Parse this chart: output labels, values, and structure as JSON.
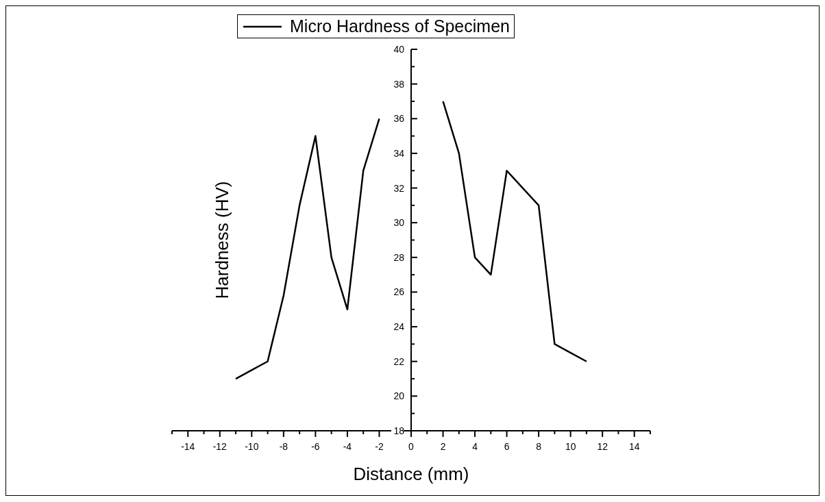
{
  "chart_data": {
    "type": "line",
    "xlabel": "Distance (mm)",
    "ylabel": "Hardness (HV)",
    "x": [
      -11,
      -10,
      -9,
      -8,
      -7,
      -6,
      -5,
      -4,
      -3,
      -2,
      0,
      2,
      3,
      4,
      5,
      6,
      7,
      8,
      9,
      10,
      11
    ],
    "series": [
      {
        "name": "Micro Hardness of Specimen",
        "color": "#000000",
        "values": [
          21,
          21.5,
          22,
          25.8,
          31,
          35,
          28,
          25,
          33,
          36,
          null,
          37,
          34,
          28,
          27,
          33,
          32,
          31,
          23,
          22.5,
          22
        ]
      }
    ],
    "xlim": [
      -15,
      15
    ],
    "xticks": [
      {
        "value": -15,
        "label": null
      },
      -14,
      {
        "value": -13,
        "label": null
      },
      -12,
      {
        "value": -11,
        "label": null
      },
      -10,
      {
        "value": -9,
        "label": null
      },
      -8,
      {
        "value": -7,
        "label": null
      },
      -6,
      {
        "value": -5,
        "label": null
      },
      -4,
      {
        "value": -3,
        "label": null
      },
      -2,
      {
        "value": -1,
        "label": null
      },
      0,
      {
        "value": 1,
        "label": null
      },
      2,
      {
        "value": 3,
        "label": null
      },
      4,
      {
        "value": 5,
        "label": null
      },
      6,
      {
        "value": 7,
        "label": null
      },
      8,
      {
        "value": 9,
        "label": null
      },
      10,
      {
        "value": 11,
        "label": null
      },
      12,
      {
        "value": 13,
        "label": null
      },
      14,
      {
        "value": 15,
        "label": null
      }
    ],
    "ylim": [
      18,
      40
    ],
    "yticks": [
      18,
      {
        "value": 19,
        "label": null
      },
      20,
      {
        "value": 21,
        "label": null
      },
      22,
      {
        "value": 23,
        "label": null
      },
      24,
      {
        "value": 25,
        "label": null
      },
      26,
      {
        "value": 27,
        "label": null
      },
      28,
      {
        "value": 29,
        "label": null
      },
      30,
      {
        "value": 31,
        "label": null
      },
      32,
      {
        "value": 33,
        "label": null
      },
      34,
      {
        "value": 35,
        "label": null
      },
      36,
      {
        "value": 37,
        "label": null
      },
      38,
      {
        "value": 39,
        "label": null
      },
      40
    ],
    "grid": false,
    "legend": "top",
    "marker": "none",
    "line_style": "solid"
  }
}
